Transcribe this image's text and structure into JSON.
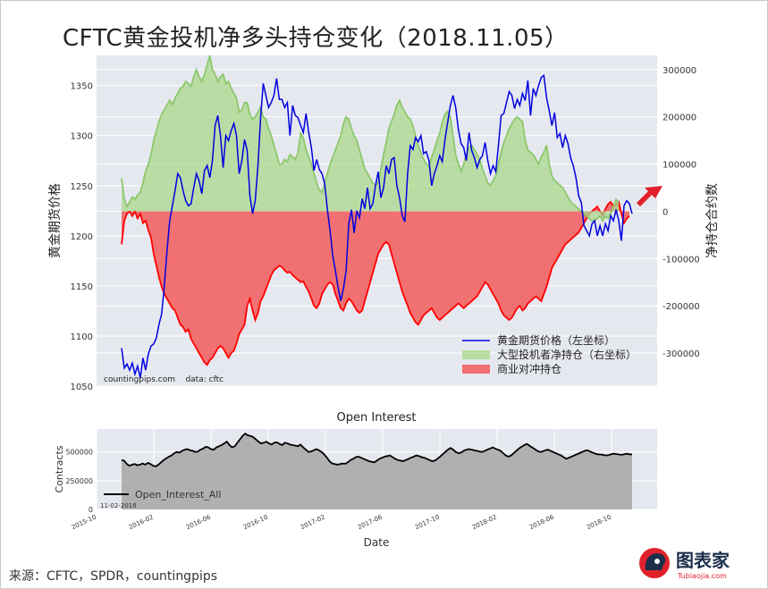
{
  "title": "CFTC黄金投机净多头持仓变化（2018.11.05）",
  "source": "来源：CFTC，SPDR，countingpips",
  "logo": {
    "text": "图表家",
    "sub": "Tubiaojia.com"
  },
  "colors": {
    "price": "#0000e0",
    "spec_fill": "#a9d88c",
    "spec_line": "#8cc86c",
    "hedge_fill": "#f25b5b",
    "hedge_line": "#ff0000",
    "bg": "#e6e8f0",
    "oi_fill": "#aaaaaa"
  },
  "chart_data": [
    {
      "type": "line",
      "ylabel_left": "黄金期货价格",
      "ylabel_right": "净持仓合约数",
      "left_ylim": [
        1050,
        1380
      ],
      "right_ylim": [
        -370000,
        330000
      ],
      "left_ticks": [
        "1050",
        "1100",
        "1150",
        "1200",
        "1250",
        "1300",
        "1350"
      ],
      "right_ticks": [
        "-300000",
        "-200000",
        "-100000",
        "0",
        "100000",
        "200000",
        "300000"
      ],
      "watermark": "countingpips.com    data: cftc",
      "legend_position": "lower-right",
      "series": [
        {
          "name": "黄金期货价格（左坐标）",
          "axis": "left",
          "values": [
            1088,
            1068,
            1072,
            1066,
            1073,
            1062,
            1070,
            1058,
            1078,
            1066,
            1082,
            1090,
            1092,
            1098,
            1112,
            1122,
            1150,
            1185,
            1215,
            1230,
            1245,
            1262,
            1258,
            1245,
            1235,
            1230,
            1232,
            1248,
            1262,
            1255,
            1242,
            1265,
            1270,
            1258,
            1275,
            1310,
            1320,
            1300,
            1268,
            1300,
            1295,
            1305,
            1312,
            1300,
            1262,
            1275,
            1296,
            1285,
            1240,
            1222,
            1235,
            1270,
            1318,
            1352,
            1340,
            1328,
            1333,
            1340,
            1357,
            1336,
            1336,
            1328,
            1333,
            1300,
            1330,
            1320,
            1318,
            1310,
            1303,
            1322,
            1303,
            1288,
            1265,
            1276,
            1266,
            1262,
            1252,
            1226,
            1205,
            1180,
            1165,
            1148,
            1135,
            1147,
            1165,
            1212,
            1226,
            1203,
            1225,
            1218,
            1237,
            1227,
            1248,
            1227,
            1232,
            1250,
            1264,
            1238,
            1248,
            1270,
            1262,
            1276,
            1278,
            1250,
            1238,
            1220,
            1214,
            1262,
            1290,
            1286,
            1298,
            1294,
            1300,
            1282,
            1284,
            1275,
            1250,
            1262,
            1270,
            1280,
            1274,
            1296,
            1313,
            1330,
            1340,
            1328,
            1306,
            1292,
            1288,
            1275,
            1303,
            1285,
            1278,
            1268,
            1276,
            1280,
            1293,
            1275,
            1262,
            1270,
            1264,
            1290,
            1320,
            1322,
            1333,
            1344,
            1340,
            1327,
            1336,
            1330,
            1342,
            1335,
            1355,
            1320,
            1347,
            1340,
            1350,
            1358,
            1360,
            1338,
            1325,
            1310,
            1323,
            1298,
            1302,
            1288,
            1300,
            1292,
            1278,
            1270,
            1258,
            1240,
            1233,
            1210,
            1205,
            1200,
            1212,
            1215,
            1200,
            1210,
            1200,
            1212,
            1205,
            1220,
            1215,
            1226,
            1215,
            1195,
            1230,
            1235,
            1232,
            1222
          ]
        },
        {
          "name": "大型投机者净持仓（右坐标）",
          "axis": "right",
          "values": [
            70000,
            25000,
            10000,
            20000,
            30000,
            25000,
            35000,
            40000,
            60000,
            85000,
            100000,
            120000,
            150000,
            170000,
            190000,
            205000,
            215000,
            225000,
            235000,
            225000,
            240000,
            250000,
            260000,
            265000,
            275000,
            270000,
            265000,
            285000,
            300000,
            285000,
            275000,
            290000,
            310000,
            330000,
            300000,
            290000,
            275000,
            285000,
            290000,
            270000,
            275000,
            260000,
            250000,
            240000,
            210000,
            215000,
            230000,
            230000,
            205000,
            195000,
            200000,
            210000,
            220000,
            200000,
            195000,
            175000,
            160000,
            140000,
            120000,
            100000,
            100000,
            110000,
            105000,
            120000,
            115000,
            110000,
            125000,
            165000,
            155000,
            130000,
            115000,
            100000,
            80000,
            60000,
            45000,
            40000,
            60000,
            80000,
            100000,
            115000,
            130000,
            145000,
            160000,
            185000,
            200000,
            195000,
            175000,
            160000,
            150000,
            130000,
            110000,
            90000,
            80000,
            70000,
            60000,
            55000,
            60000,
            90000,
            120000,
            145000,
            175000,
            190000,
            205000,
            225000,
            235000,
            220000,
            210000,
            200000,
            195000,
            180000,
            160000,
            140000,
            125000,
            110000,
            100000,
            95000,
            115000,
            130000,
            150000,
            165000,
            190000,
            205000,
            212000,
            200000,
            160000,
            120000,
            100000,
            85000,
            100000,
            120000,
            135000,
            140000,
            130000,
            120000,
            110000,
            90000,
            75000,
            60000,
            55000,
            65000,
            75000,
            100000,
            125000,
            145000,
            160000,
            175000,
            185000,
            195000,
            200000,
            195000,
            190000,
            150000,
            130000,
            125000,
            120000,
            110000,
            100000,
            115000,
            125000,
            140000,
            100000,
            75000,
            65000,
            60000,
            55000,
            50000,
            40000,
            30000,
            20000,
            15000,
            10000,
            5000,
            0,
            -5000,
            -10000,
            -15000,
            -20000,
            -20000,
            -15000,
            -10000,
            -20000,
            -10000,
            -15000,
            -5000,
            10000,
            25000,
            18000
          ]
        },
        {
          "name": "商业对冲持仓",
          "axis": "right",
          "values": [
            -70000,
            -20000,
            -5000,
            0,
            -10000,
            0,
            -15000,
            -5000,
            -25000,
            -20000,
            -40000,
            -55000,
            -90000,
            -115000,
            -140000,
            -160000,
            -175000,
            -185000,
            -195000,
            -205000,
            -210000,
            -225000,
            -240000,
            -245000,
            -255000,
            -250000,
            -270000,
            -280000,
            -290000,
            -300000,
            -310000,
            -320000,
            -325000,
            -315000,
            -310000,
            -300000,
            -290000,
            -285000,
            -290000,
            -300000,
            -310000,
            -300000,
            -295000,
            -280000,
            -260000,
            -250000,
            -240000,
            -200000,
            -185000,
            -210000,
            -230000,
            -215000,
            -190000,
            -180000,
            -165000,
            -150000,
            -135000,
            -125000,
            -120000,
            -115000,
            -118000,
            -125000,
            -130000,
            -128000,
            -135000,
            -140000,
            -145000,
            -150000,
            -148000,
            -160000,
            -170000,
            -185000,
            -200000,
            -205000,
            -195000,
            -175000,
            -165000,
            -155000,
            -150000,
            -155000,
            -175000,
            -190000,
            -205000,
            -210000,
            -195000,
            -185000,
            -190000,
            -200000,
            -210000,
            -215000,
            -210000,
            -190000,
            -170000,
            -150000,
            -130000,
            -110000,
            -90000,
            -80000,
            -70000,
            -65000,
            -70000,
            -90000,
            -110000,
            -130000,
            -150000,
            -170000,
            -185000,
            -200000,
            -215000,
            -225000,
            -235000,
            -240000,
            -230000,
            -220000,
            -215000,
            -210000,
            -205000,
            -215000,
            -225000,
            -230000,
            -225000,
            -220000,
            -215000,
            -210000,
            -205000,
            -200000,
            -195000,
            -200000,
            -205000,
            -200000,
            -195000,
            -190000,
            -185000,
            -180000,
            -170000,
            -160000,
            -150000,
            -155000,
            -165000,
            -175000,
            -185000,
            -195000,
            -210000,
            -220000,
            -225000,
            -230000,
            -225000,
            -215000,
            -205000,
            -200000,
            -210000,
            -205000,
            -195000,
            -190000,
            -185000,
            -180000,
            -185000,
            -190000,
            -175000,
            -160000,
            -140000,
            -120000,
            -110000,
            -100000,
            -90000,
            -80000,
            -70000,
            -65000,
            -60000,
            -55000,
            -50000,
            -45000,
            -35000,
            -25000,
            -15000,
            -5000,
            0,
            5000,
            10000,
            0,
            -10000,
            5000,
            15000,
            20000,
            10000,
            15000,
            20000,
            -5000,
            -25000,
            -15000,
            -10000
          ]
        }
      ]
    },
    {
      "type": "area",
      "title": "Open Interest",
      "ylabel": "Contracts",
      "xlabel": "Date",
      "ylim": [
        0,
        700000
      ],
      "y_ticks": [
        "0",
        "250000",
        "500000"
      ],
      "x_ticks": [
        "2015-10",
        "2016-02",
        "2016-06",
        "2016-10",
        "2017-02",
        "2017-06",
        "2017-10",
        "2018-02",
        "2018-06",
        "2018-10"
      ],
      "date_label": "11-02-2018",
      "series": [
        {
          "name": "Open_Interest_All",
          "values": [
            430000,
            425000,
            395000,
            380000,
            390000,
            395000,
            385000,
            390000,
            400000,
            390000,
            405000,
            395000,
            380000,
            375000,
            390000,
            410000,
            430000,
            445000,
            460000,
            470000,
            490000,
            500000,
            495000,
            510000,
            520000,
            525000,
            515000,
            510000,
            500000,
            505000,
            520000,
            530000,
            545000,
            540000,
            525000,
            520000,
            540000,
            550000,
            560000,
            575000,
            590000,
            560000,
            540000,
            550000,
            580000,
            610000,
            640000,
            660000,
            645000,
            640000,
            630000,
            610000,
            590000,
            575000,
            580000,
            590000,
            575000,
            565000,
            580000,
            585000,
            570000,
            560000,
            580000,
            575000,
            565000,
            560000,
            555000,
            550000,
            565000,
            540000,
            520000,
            500000,
            505000,
            515000,
            525000,
            515000,
            500000,
            480000,
            450000,
            420000,
            400000,
            395000,
            390000,
            395000,
            400000,
            398000,
            410000,
            430000,
            440000,
            455000,
            460000,
            450000,
            440000,
            430000,
            420000,
            415000,
            410000,
            425000,
            440000,
            450000,
            460000,
            465000,
            470000,
            455000,
            440000,
            430000,
            425000,
            420000,
            430000,
            440000,
            450000,
            460000,
            470000,
            465000,
            455000,
            450000,
            440000,
            430000,
            420000,
            425000,
            440000,
            460000,
            480000,
            500000,
            520000,
            535000,
            520000,
            500000,
            490000,
            495000,
            510000,
            520000,
            525000,
            520000,
            515000,
            510000,
            505000,
            500000,
            510000,
            520000,
            530000,
            540000,
            530000,
            520000,
            510000,
            490000,
            470000,
            460000,
            470000,
            490000,
            510000,
            530000,
            545000,
            560000,
            570000,
            555000,
            540000,
            525000,
            510000,
            500000,
            505000,
            515000,
            520000,
            510000,
            500000,
            490000,
            480000,
            470000,
            455000,
            440000,
            450000,
            460000,
            470000,
            480000,
            490000,
            500000,
            510000,
            515000,
            505000,
            495000,
            485000,
            480000,
            478000,
            475000,
            470000,
            472000,
            480000,
            485000,
            482000,
            478000,
            475000,
            480000,
            485000,
            480000,
            478000
          ]
        }
      ]
    }
  ]
}
